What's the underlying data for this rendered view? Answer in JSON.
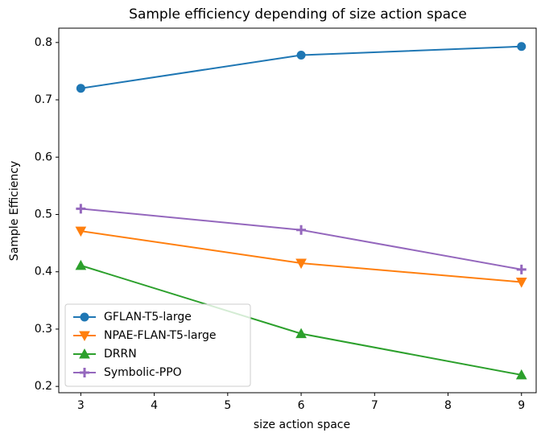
{
  "chart_data": {
    "type": "line",
    "title": "Sample efficiency depending of size action space",
    "x_label": "size action space",
    "y_label": "Sample Efficiency",
    "x": [
      3,
      6,
      9
    ],
    "series": [
      {
        "name": "GFLAN-T5-large",
        "color": "#1f77b4",
        "marker": "circle",
        "values": [
          0.72,
          0.778,
          0.793
        ]
      },
      {
        "name": "NPAE-FLAN-T5-large",
        "color": "#ff7f0e",
        "marker": "triangle-down",
        "values": [
          0.471,
          0.415,
          0.382
        ]
      },
      {
        "name": "DRRN",
        "color": "#2ca02c",
        "marker": "triangle-up",
        "values": [
          0.411,
          0.292,
          0.22
        ]
      },
      {
        "name": "Symbolic-PPO",
        "color": "#9467bd",
        "marker": "plus",
        "values": [
          0.51,
          0.473,
          0.404
        ]
      }
    ],
    "xlim": [
      2.7,
      9.2
    ],
    "xticks": [
      3,
      4,
      5,
      6,
      7,
      8,
      9
    ],
    "ylim": [
      0.189,
      0.825
    ],
    "yticks": [
      0.2,
      0.3,
      0.4,
      0.5,
      0.6,
      0.7,
      0.8
    ],
    "legend": "lower left",
    "grid": false
  }
}
